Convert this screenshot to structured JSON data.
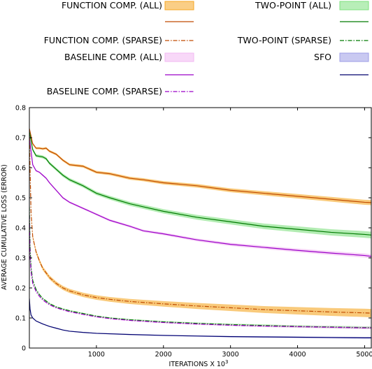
{
  "chart_data": {
    "type": "line",
    "xlabel": "ITERATIONS X 10",
    "xlabel_exponent": "3",
    "ylabel": "AVERAGE CUMULATIVE LOSS (ERROR)",
    "xlim": [
      0,
      5100
    ],
    "ylim": [
      0,
      0.8
    ],
    "x_ticks": [
      1000,
      2000,
      3000,
      4000,
      5000
    ],
    "y_ticks": [
      0,
      0.1,
      0.2,
      0.3,
      0.4,
      0.5,
      0.6,
      0.7,
      0.8
    ],
    "grid": false,
    "legend_position": "top",
    "legend": [
      {
        "label": "FUNCTION COMP. (ALL)",
        "kind": "band",
        "color": "#f5a623"
      },
      {
        "label": "",
        "kind": "line",
        "color": "#c04b00"
      },
      {
        "label": "FUNCTION COMP. (SPARSE)",
        "kind": "dashdot",
        "color": "#c04b00"
      },
      {
        "label": "BASELINE COMP. (ALL)",
        "kind": "band",
        "color": "#f2b8f2"
      },
      {
        "label": "",
        "kind": "line",
        "color": "#9a00c8"
      },
      {
        "label": "BASELINE COMP. (SPARSE)",
        "kind": "dashdot",
        "color": "#9a00c8"
      },
      {
        "label": "TWO-POINT (ALL)",
        "kind": "band",
        "color": "#7ee07e"
      },
      {
        "label": "",
        "kind": "line",
        "color": "#007a00"
      },
      {
        "label": "TWO-POINT (SPARSE)",
        "kind": "dashdot",
        "color": "#007a00"
      },
      {
        "label": "SFO",
        "kind": "band",
        "color": "#9d9de6"
      },
      {
        "label": "",
        "kind": "line",
        "color": "#00006e"
      }
    ],
    "series": [
      {
        "id": "func_all",
        "style": "line",
        "color": "#c04b00",
        "band_color": "#f5a623",
        "band": 0.006,
        "x": [
          0,
          50,
          100,
          150,
          200,
          250,
          300,
          400,
          500,
          600,
          800,
          1000,
          1200,
          1500,
          1700,
          2000,
          2500,
          3000,
          3500,
          4000,
          4500,
          5000,
          5100
        ],
        "y": [
          0.73,
          0.68,
          0.665,
          0.665,
          0.663,
          0.665,
          0.655,
          0.645,
          0.625,
          0.61,
          0.605,
          0.585,
          0.58,
          0.565,
          0.56,
          0.55,
          0.54,
          0.525,
          0.515,
          0.505,
          0.495,
          0.485,
          0.484
        ]
      },
      {
        "id": "two_all",
        "style": "line",
        "color": "#007a00",
        "band_color": "#7ee07e",
        "band": 0.008,
        "x": [
          0,
          50,
          100,
          150,
          200,
          250,
          300,
          400,
          500,
          600,
          800,
          1000,
          1200,
          1500,
          1700,
          2000,
          2500,
          3000,
          3500,
          4000,
          4500,
          5000,
          5100
        ],
        "y": [
          0.72,
          0.66,
          0.64,
          0.638,
          0.636,
          0.63,
          0.615,
          0.595,
          0.575,
          0.56,
          0.54,
          0.515,
          0.5,
          0.48,
          0.47,
          0.455,
          0.435,
          0.42,
          0.405,
          0.395,
          0.385,
          0.378,
          0.376
        ]
      },
      {
        "id": "base_all",
        "style": "line",
        "color": "#9a00c8",
        "band_color": "#f2b8f2",
        "band": 0.005,
        "x": [
          0,
          50,
          100,
          150,
          200,
          250,
          300,
          400,
          500,
          600,
          800,
          1000,
          1200,
          1500,
          1700,
          2000,
          2500,
          3000,
          3500,
          4000,
          4500,
          5000,
          5100
        ],
        "y": [
          0.7,
          0.61,
          0.59,
          0.585,
          0.575,
          0.565,
          0.55,
          0.525,
          0.5,
          0.485,
          0.465,
          0.445,
          0.425,
          0.405,
          0.39,
          0.38,
          0.36,
          0.345,
          0.335,
          0.325,
          0.316,
          0.308,
          0.305
        ]
      },
      {
        "id": "func_sparse",
        "style": "dashdot",
        "color": "#c04b00",
        "band_color": "#f5a623",
        "band": 0.01,
        "x": [
          0,
          10,
          25,
          50,
          100,
          150,
          200,
          300,
          400,
          500,
          600,
          800,
          1000,
          1200,
          1500,
          2000,
          2500,
          3000,
          3500,
          4000,
          4500,
          5000,
          5100
        ],
        "y": [
          0.73,
          0.6,
          0.45,
          0.37,
          0.32,
          0.29,
          0.265,
          0.235,
          0.215,
          0.2,
          0.19,
          0.177,
          0.168,
          0.162,
          0.155,
          0.147,
          0.14,
          0.134,
          0.128,
          0.124,
          0.12,
          0.117,
          0.116
        ]
      },
      {
        "id": "two_sparse",
        "style": "dashdot",
        "color": "#007a00",
        "band_color": "#7ee07e",
        "band": 0.003,
        "x": [
          0,
          10,
          25,
          50,
          100,
          150,
          200,
          300,
          400,
          500,
          600,
          800,
          1000,
          1200,
          1500,
          2000,
          2500,
          3000,
          3500,
          4000,
          4500,
          5000,
          5100
        ],
        "y": [
          0.47,
          0.34,
          0.27,
          0.225,
          0.195,
          0.178,
          0.165,
          0.148,
          0.137,
          0.13,
          0.124,
          0.115,
          0.106,
          0.1,
          0.094,
          0.087,
          0.082,
          0.078,
          0.075,
          0.072,
          0.07,
          0.068,
          0.068
        ]
      },
      {
        "id": "base_sparse",
        "style": "dashdot",
        "color": "#9a00c8",
        "band_color": "#f2b8f2",
        "band": 0.003,
        "x": [
          0,
          10,
          25,
          50,
          100,
          150,
          200,
          300,
          400,
          500,
          600,
          800,
          1000,
          1200,
          1500,
          2000,
          2500,
          3000,
          3500,
          4000,
          4500,
          5000,
          5100
        ],
        "y": [
          0.44,
          0.31,
          0.255,
          0.215,
          0.188,
          0.172,
          0.16,
          0.144,
          0.134,
          0.127,
          0.121,
          0.112,
          0.104,
          0.098,
          0.092,
          0.085,
          0.08,
          0.076,
          0.073,
          0.071,
          0.069,
          0.067,
          0.067
        ]
      },
      {
        "id": "sfo",
        "style": "line",
        "color": "#00006e",
        "band_color": "#9d9de6",
        "band": 0.002,
        "x": [
          0,
          10,
          25,
          50,
          100,
          150,
          200,
          300,
          400,
          500,
          600,
          800,
          1000,
          1500,
          2000,
          2500,
          3000,
          3500,
          4000,
          4500,
          5000,
          5100
        ],
        "y": [
          0.165,
          0.13,
          0.11,
          0.1,
          0.09,
          0.085,
          0.08,
          0.072,
          0.066,
          0.06,
          0.056,
          0.052,
          0.049,
          0.045,
          0.042,
          0.04,
          0.038,
          0.037,
          0.036,
          0.035,
          0.034,
          0.034
        ]
      }
    ]
  }
}
